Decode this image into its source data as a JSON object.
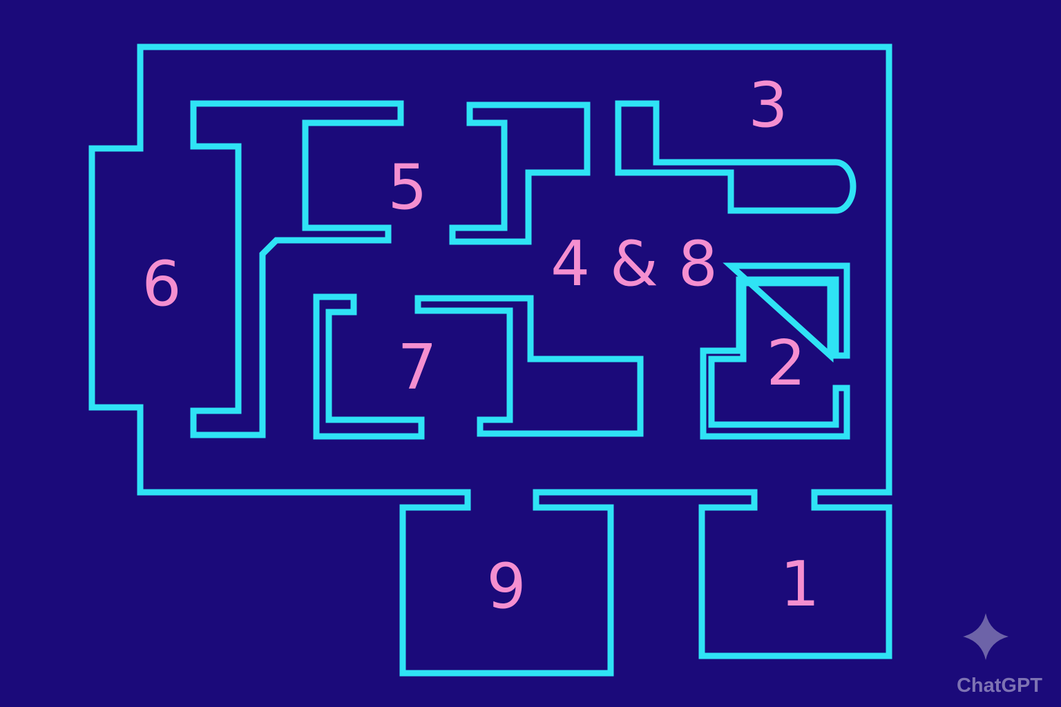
{
  "map": {
    "type": "floor-plan",
    "colors": {
      "background": "#1b0a7a",
      "floor": "#b22db0",
      "wall": "#2fe3f5",
      "label": "#f58fd0"
    },
    "rooms": [
      {
        "id": "room-1",
        "label": "1"
      },
      {
        "id": "room-2",
        "label": "2"
      },
      {
        "id": "room-3",
        "label": "3"
      },
      {
        "id": "room-4-8",
        "label": "4 & 8"
      },
      {
        "id": "room-5",
        "label": "5"
      },
      {
        "id": "room-6",
        "label": "6"
      },
      {
        "id": "room-7",
        "label": "7"
      },
      {
        "id": "room-9",
        "label": "9"
      }
    ]
  },
  "watermark": {
    "text": "ChatGPT",
    "icon": "sparkle-icon"
  }
}
